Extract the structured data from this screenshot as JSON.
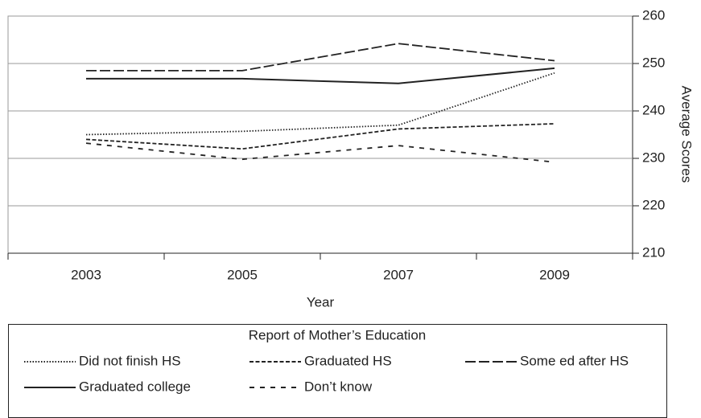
{
  "chart_data": {
    "type": "line",
    "categories": [
      "2003",
      "2005",
      "2007",
      "2009"
    ],
    "x_label": "Year",
    "y_label": "Average Scores",
    "ylim": [
      210,
      260
    ],
    "yticks": [
      210,
      220,
      230,
      240,
      250,
      260
    ],
    "grid": true,
    "legend_title": "Report of Mother’s Education",
    "legend_position": "bottom",
    "series": [
      {
        "name": "Did not finish HS",
        "color": "#222222",
        "dash": "dotted",
        "values": [
          235,
          235.7,
          237,
          248
        ]
      },
      {
        "name": "Graduated HS",
        "color": "#222222",
        "dash": "dashed",
        "values": [
          234,
          232,
          236.2,
          237.3
        ]
      },
      {
        "name": "Some ed after HS",
        "color": "#222222",
        "dash": "long-dashed",
        "values": [
          248.5,
          248.5,
          254.2,
          250.6
        ]
      },
      {
        "name": "Graduated college",
        "color": "#222222",
        "dash": "solid",
        "values": [
          246.8,
          246.8,
          245.8,
          249
        ]
      },
      {
        "name": "Don’t know",
        "color": "#222222",
        "dash": "spaced-dashed",
        "values": [
          233.2,
          229.8,
          232.7,
          229.2
        ]
      }
    ]
  }
}
